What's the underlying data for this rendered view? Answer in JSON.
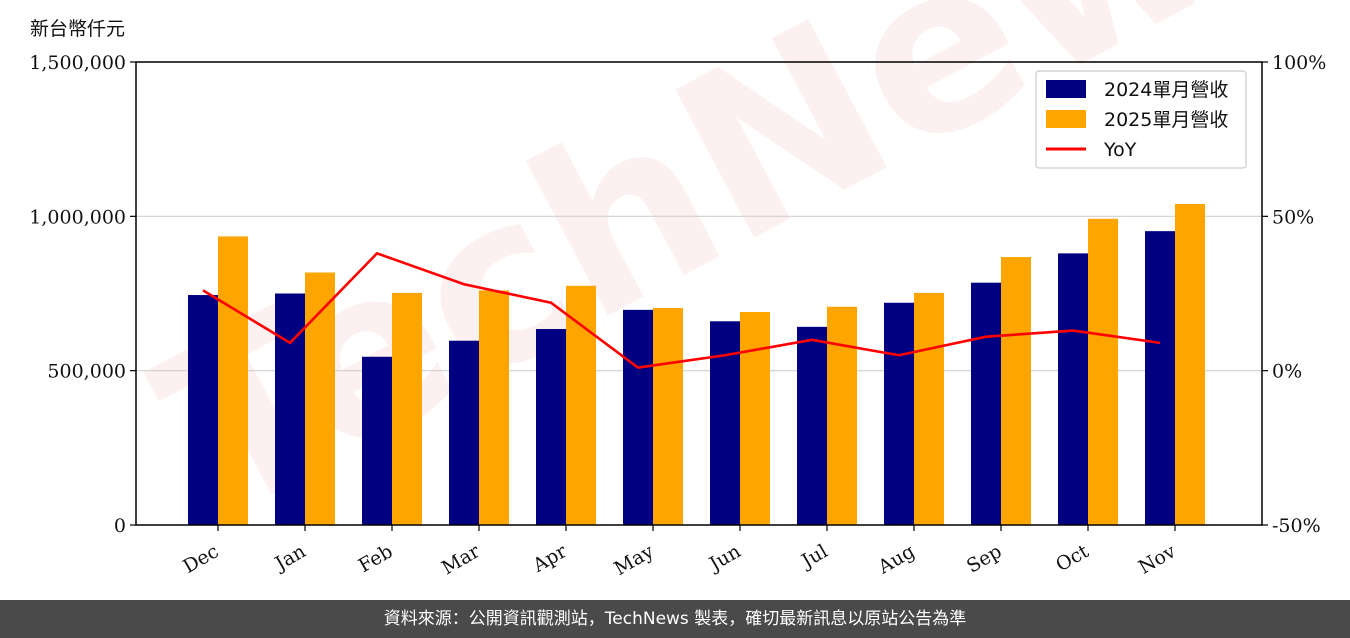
{
  "unit_label": "新台幣仟元",
  "footer_text": "資料來源：公開資訊觀測站，TechNews 製表，確切最新訊息以原站公告為準",
  "watermark": "TechNews",
  "chart_data": {
    "type": "bar",
    "categories": [
      "Dec",
      "Jan",
      "Feb",
      "Mar",
      "Apr",
      "May",
      "Jun",
      "Jul",
      "Aug",
      "Sep",
      "Oct",
      "Nov"
    ],
    "series": [
      {
        "name": "2024單月營收",
        "type": "bar",
        "axis": "left",
        "color": "#000080",
        "values": [
          745000,
          750000,
          545000,
          597000,
          635000,
          697000,
          660000,
          642000,
          720000,
          785000,
          880000,
          952000
        ]
      },
      {
        "name": "2025單月營收",
        "type": "bar",
        "axis": "left",
        "color": "#FFA500",
        "values": [
          935000,
          818000,
          752000,
          760000,
          775000,
          703000,
          690000,
          707000,
          752000,
          868000,
          992000,
          1040000
        ]
      },
      {
        "name": "YoY",
        "type": "line",
        "axis": "right",
        "color": "#FF0000",
        "values": [
          26,
          9,
          38,
          28,
          22,
          1,
          5,
          10,
          5,
          11,
          13,
          9
        ]
      }
    ],
    "y_left": {
      "min": 0,
      "max": 1500000,
      "ticks": [
        "0",
        "500,000",
        "1,000,000",
        "1,500,000"
      ],
      "tick_values": [
        0,
        500000,
        1000000,
        1500000
      ]
    },
    "y_right": {
      "min": -50,
      "max": 100,
      "ticks": [
        "-50%",
        "0%",
        "50%",
        "100%"
      ],
      "tick_values": [
        -50,
        0,
        50,
        100
      ]
    },
    "grid": "horizontal",
    "legend": "top-right"
  }
}
